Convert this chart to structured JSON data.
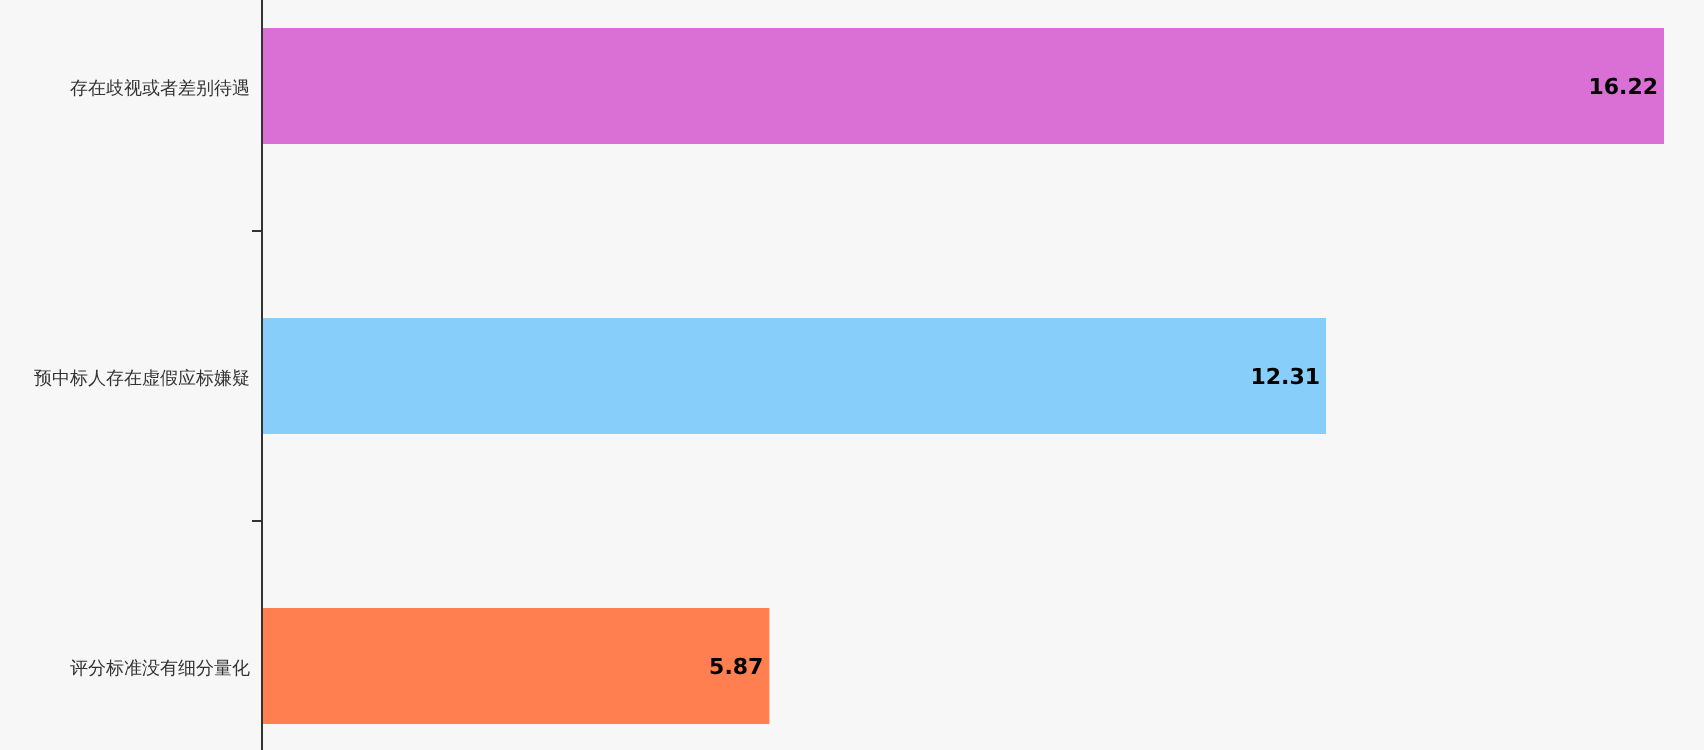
{
  "chart_data": {
    "type": "bar",
    "orientation": "horizontal",
    "data_labels": true,
    "categories": [
      "存在歧视或者差别待遇",
      "预中标人存在虚假应标嫌疑",
      "评分标准没有细分量化"
    ],
    "values": [
      16.22,
      12.31,
      5.87
    ],
    "colors": [
      "#da70d6",
      "#87cefa",
      "#ff7f50"
    ]
  }
}
